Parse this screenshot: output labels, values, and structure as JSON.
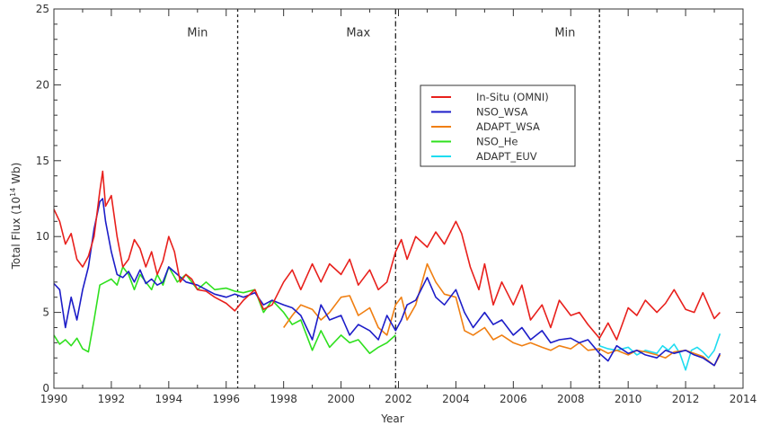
{
  "chart_data": {
    "type": "line",
    "xlabel": "Year",
    "ylabel_main": "Total Flux (10",
    "ylabel_exp": "14",
    "ylabel_unit": " Wb)",
    "xlim": [
      1990,
      2014
    ],
    "ylim": [
      0,
      25
    ],
    "xticks": [
      1990,
      1992,
      1994,
      1996,
      1998,
      2000,
      2002,
      2004,
      2006,
      2008,
      2010,
      2012,
      2014
    ],
    "yticks": [
      0,
      5,
      10,
      15,
      20,
      25
    ],
    "grid": false,
    "legend_position": "upper-right-center",
    "vlines": [
      {
        "x": 1996.4,
        "style": "dashed"
      },
      {
        "x": 2001.9,
        "style": "dashdot"
      },
      {
        "x": 2009.0,
        "style": "dashed"
      }
    ],
    "annotations": [
      {
        "text": "Min",
        "x": 1995.0,
        "y": 23.2
      },
      {
        "text": "Max",
        "x": 2000.6,
        "y": 23.2
      },
      {
        "text": "Min",
        "x": 2007.8,
        "y": 23.2
      }
    ],
    "series": [
      {
        "name": "In-Situ (OMNI)",
        "color": "#e8201c",
        "x": [
          1990.0,
          1990.2,
          1990.4,
          1990.6,
          1990.8,
          1991.0,
          1991.2,
          1991.4,
          1991.6,
          1991.7,
          1991.8,
          1992.0,
          1992.2,
          1992.4,
          1992.6,
          1992.8,
          1993.0,
          1993.2,
          1993.4,
          1993.6,
          1993.8,
          1994.0,
          1994.2,
          1994.4,
          1994.6,
          1994.8,
          1995.0,
          1995.3,
          1995.6,
          1996.0,
          1996.3,
          1996.6,
          1997.0,
          1997.3,
          1997.6,
          1998.0,
          1998.3,
          1998.6,
          1999.0,
          1999.3,
          1999.6,
          2000.0,
          2000.3,
          2000.6,
          2001.0,
          2001.3,
          2001.6,
          2001.9,
          2002.1,
          2002.3,
          2002.6,
          2003.0,
          2003.3,
          2003.6,
          2004.0,
          2004.2,
          2004.5,
          2004.8,
          2005.0,
          2005.3,
          2005.6,
          2006.0,
          2006.3,
          2006.6,
          2007.0,
          2007.3,
          2007.6,
          2008.0,
          2008.3,
          2008.6,
          2009.0,
          2009.3,
          2009.6,
          2010.0,
          2010.3,
          2010.6,
          2011.0,
          2011.3,
          2011.6,
          2012.0,
          2012.3,
          2012.6,
          2013.0,
          2013.2
        ],
        "y": [
          11.8,
          11.0,
          9.5,
          10.2,
          8.5,
          8.0,
          8.7,
          10.0,
          13.0,
          14.3,
          12.0,
          12.7,
          10.0,
          8.0,
          8.5,
          9.8,
          9.2,
          8.0,
          9.0,
          7.5,
          8.4,
          10.0,
          9.0,
          7.0,
          7.5,
          7.2,
          6.5,
          6.4,
          6.0,
          5.6,
          5.1,
          5.8,
          6.5,
          5.2,
          5.5,
          7.0,
          7.8,
          6.5,
          8.2,
          7.0,
          8.2,
          7.5,
          8.5,
          6.8,
          7.8,
          6.5,
          7.0,
          9.0,
          9.8,
          8.5,
          10.0,
          9.3,
          10.3,
          9.5,
          11.0,
          10.2,
          8.0,
          6.5,
          8.2,
          5.5,
          7.0,
          5.5,
          6.8,
          4.5,
          5.5,
          4.0,
          5.8,
          4.8,
          5.0,
          4.2,
          3.3,
          4.3,
          3.2,
          5.3,
          4.8,
          5.8,
          5.0,
          5.6,
          6.5,
          5.2,
          5.0,
          6.3,
          4.6,
          5.0
        ]
      },
      {
        "name": "NSO_WSA",
        "color": "#1d1dc8",
        "x": [
          1990.0,
          1990.2,
          1990.4,
          1990.6,
          1990.8,
          1991.0,
          1991.2,
          1991.4,
          1991.6,
          1991.7,
          1991.8,
          1992.0,
          1992.2,
          1992.4,
          1992.6,
          1992.8,
          1993.0,
          1993.2,
          1993.4,
          1993.6,
          1993.8,
          1994.0,
          1994.3,
          1994.6,
          1995.0,
          1995.3,
          1995.6,
          1996.0,
          1996.3,
          1996.6,
          1997.0,
          1997.3,
          1997.6,
          1998.0,
          1998.3,
          1998.6,
          1999.0,
          1999.3,
          1999.6,
          2000.0,
          2000.3,
          2000.6,
          2001.0,
          2001.3,
          2001.6,
          2001.9,
          2002.1,
          2002.3,
          2002.6,
          2003.0,
          2003.3,
          2003.6,
          2004.0,
          2004.3,
          2004.6,
          2005.0,
          2005.3,
          2005.6,
          2006.0,
          2006.3,
          2006.6,
          2007.0,
          2007.3,
          2007.6,
          2008.0,
          2008.3,
          2008.6,
          2009.0,
          2009.3,
          2009.6,
          2010.0,
          2010.3,
          2010.6,
          2011.0,
          2011.3,
          2011.6,
          2012.0,
          2012.3,
          2012.6,
          2013.0,
          2013.2
        ],
        "y": [
          6.9,
          6.5,
          4.0,
          6.0,
          4.5,
          6.5,
          8.0,
          10.5,
          12.3,
          12.5,
          11.0,
          9.0,
          7.5,
          7.3,
          7.7,
          7.0,
          7.8,
          6.9,
          7.2,
          6.8,
          7.0,
          8.0,
          7.5,
          7.0,
          6.8,
          6.5,
          6.2,
          6.0,
          6.2,
          6.0,
          6.3,
          5.5,
          5.8,
          5.5,
          5.3,
          4.8,
          3.2,
          5.5,
          4.5,
          4.8,
          3.5,
          4.2,
          3.8,
          3.2,
          4.8,
          3.8,
          4.5,
          5.5,
          5.8,
          7.3,
          6.0,
          5.5,
          6.5,
          5.0,
          4.0,
          5.0,
          4.2,
          4.5,
          3.5,
          4.0,
          3.2,
          3.8,
          3.0,
          3.2,
          3.3,
          3.0,
          3.2,
          2.3,
          1.8,
          2.8,
          2.3,
          2.5,
          2.2,
          2.0,
          2.5,
          2.3,
          2.5,
          2.2,
          2.0,
          1.5,
          2.3
        ]
      },
      {
        "name": "ADAPT_WSA",
        "color": "#f07f12",
        "x": [
          1998.0,
          1998.3,
          1998.6,
          1999.0,
          1999.3,
          1999.6,
          2000.0,
          2000.3,
          2000.6,
          2001.0,
          2001.3,
          2001.6,
          2001.9,
          2002.1,
          2002.3,
          2002.6,
          2003.0,
          2003.3,
          2003.6,
          2004.0,
          2004.3,
          2004.6,
          2005.0,
          2005.3,
          2005.6,
          2006.0,
          2006.3,
          2006.6,
          2007.0,
          2007.3,
          2007.6,
          2008.0,
          2008.3,
          2008.6,
          2009.0,
          2009.3,
          2009.6,
          2010.0,
          2010.3,
          2010.6,
          2011.0,
          2011.3,
          2011.6,
          2012.0,
          2012.3,
          2012.6,
          2013.0,
          2013.2
        ],
        "y": [
          4.0,
          4.8,
          5.5,
          5.2,
          4.5,
          5.0,
          6.0,
          6.1,
          4.8,
          5.3,
          4.0,
          3.5,
          5.5,
          6.0,
          4.5,
          5.5,
          8.2,
          7.0,
          6.2,
          6.0,
          3.8,
          3.5,
          4.0,
          3.2,
          3.5,
          3.0,
          2.8,
          3.0,
          2.7,
          2.5,
          2.8,
          2.6,
          3.0,
          2.5,
          2.6,
          2.3,
          2.5,
          2.2,
          2.5,
          2.4,
          2.2,
          2.0,
          2.4,
          2.5,
          2.3,
          2.1,
          1.5,
          2.2
        ]
      },
      {
        "name": "NSO_He",
        "color": "#2fe01e",
        "x": [
          1990.0,
          1990.2,
          1990.4,
          1990.6,
          1990.8,
          1991.0,
          1991.2,
          1991.4,
          1991.6,
          1991.8,
          1992.0,
          1992.2,
          1992.4,
          1992.6,
          1992.8,
          1993.0,
          1993.2,
          1993.4,
          1993.6,
          1993.8,
          1994.0,
          1994.3,
          1994.6,
          1995.0,
          1995.3,
          1995.6,
          1996.0,
          1996.3,
          1996.6,
          1997.0,
          1997.3,
          1997.6,
          1998.0,
          1998.3,
          1998.6,
          1999.0,
          1999.3,
          1999.6,
          2000.0,
          2000.3,
          2000.6,
          2001.0,
          2001.3,
          2001.6,
          2001.9
        ],
        "y": [
          3.5,
          2.9,
          3.2,
          2.8,
          3.3,
          2.6,
          2.4,
          4.5,
          6.8,
          7.0,
          7.2,
          6.8,
          8.0,
          7.5,
          6.5,
          7.5,
          7.0,
          6.5,
          7.5,
          6.8,
          8.0,
          7.0,
          7.5,
          6.5,
          7.0,
          6.5,
          6.6,
          6.4,
          6.3,
          6.5,
          5.0,
          5.8,
          5.0,
          4.2,
          4.5,
          2.5,
          3.8,
          2.7,
          3.5,
          3.0,
          3.2,
          2.3,
          2.7,
          3.0,
          3.5
        ]
      },
      {
        "name": "ADAPT_EUV",
        "color": "#1edcf0",
        "x": [
          2009.0,
          2009.3,
          2009.6,
          2010.0,
          2010.3,
          2010.6,
          2011.0,
          2011.2,
          2011.4,
          2011.6,
          2011.8,
          2012.0,
          2012.2,
          2012.4,
          2012.6,
          2012.8,
          2013.0,
          2013.2
        ],
        "y": [
          2.8,
          2.6,
          2.5,
          2.7,
          2.2,
          2.5,
          2.3,
          2.8,
          2.5,
          2.9,
          2.3,
          1.2,
          2.5,
          2.7,
          2.4,
          2.0,
          2.5,
          3.6
        ]
      }
    ]
  }
}
